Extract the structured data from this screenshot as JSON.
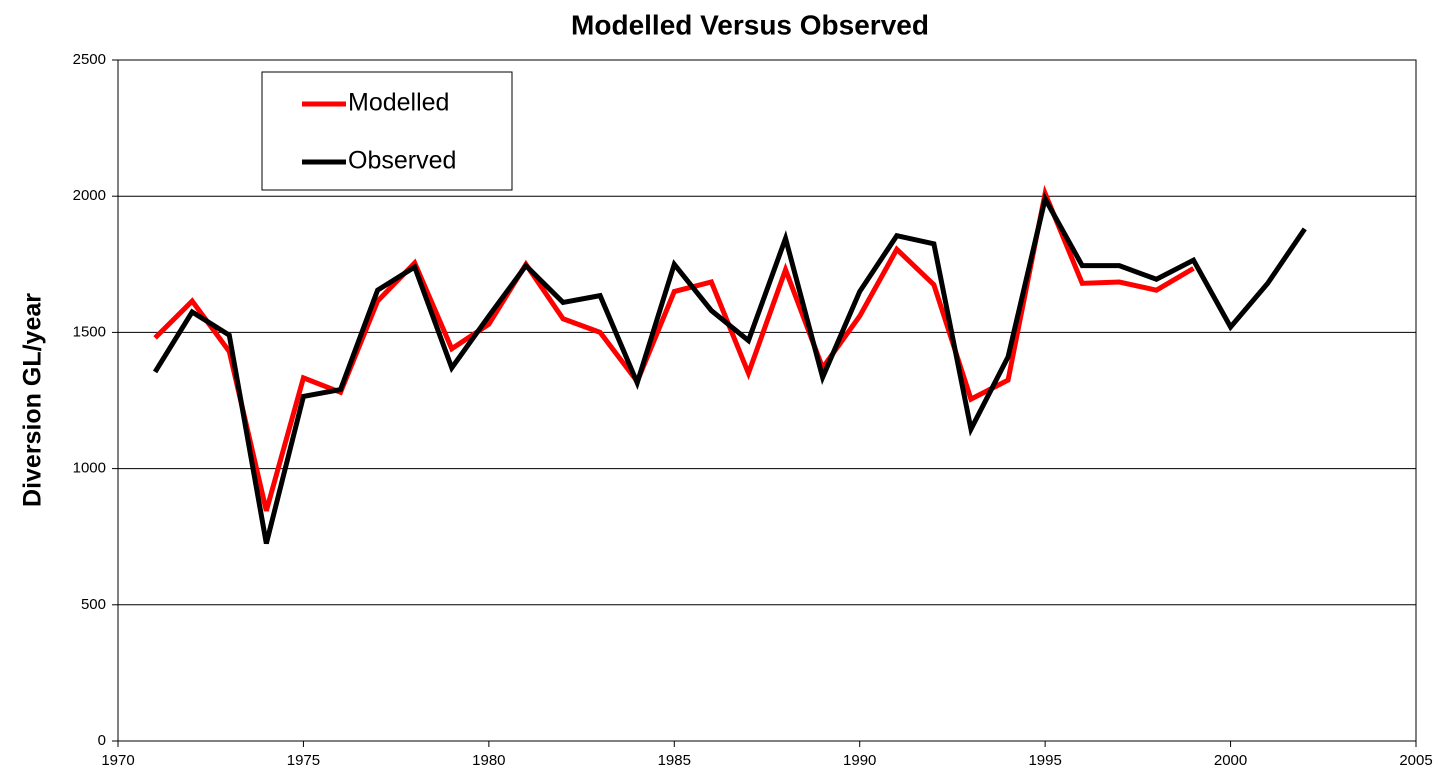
{
  "chart_data": {
    "type": "line",
    "title": "Modelled Versus Observed",
    "y_label": "Diversion GL/year",
    "x": [
      1971,
      1972,
      1973,
      1974,
      1975,
      1976,
      1977,
      1978,
      1979,
      1980,
      1981,
      1982,
      1983,
      1984,
      1985,
      1986,
      1987,
      1988,
      1989,
      1990,
      1991,
      1992,
      1993,
      1994,
      1995,
      1996,
      1997,
      1998,
      1999,
      2000,
      2001,
      2002
    ],
    "series": [
      {
        "name": "Modelled",
        "color": "#ff0000",
        "values": [
          1480,
          1615,
          1430,
          845,
          1333,
          1280,
          1615,
          1755,
          1440,
          1530,
          1750,
          1550,
          1500,
          1320,
          1650,
          1685,
          1350,
          1730,
          1370,
          1560,
          1805,
          1675,
          1255,
          1325,
          2010,
          1680,
          1685,
          1655,
          1735,
          null,
          null,
          null
        ]
      },
      {
        "name": "Observed",
        "color": "#000000",
        "values": [
          1355,
          1575,
          1490,
          725,
          1265,
          1290,
          1655,
          1740,
          1370,
          1560,
          1745,
          1610,
          1635,
          1315,
          1750,
          1580,
          1470,
          1845,
          1335,
          1650,
          1855,
          1825,
          1145,
          1410,
          1990,
          1745,
          1745,
          1695,
          1765,
          1520,
          1680,
          1880
        ]
      }
    ],
    "xlim": [
      1970,
      2005
    ],
    "xticks": [
      1970,
      1975,
      1980,
      1985,
      1990,
      1995,
      2000,
      2005
    ],
    "ylim": [
      0,
      2500
    ],
    "yticks": [
      0,
      500,
      1000,
      1500,
      2000,
      2500
    ],
    "grid": true,
    "legend": "upper left"
  }
}
